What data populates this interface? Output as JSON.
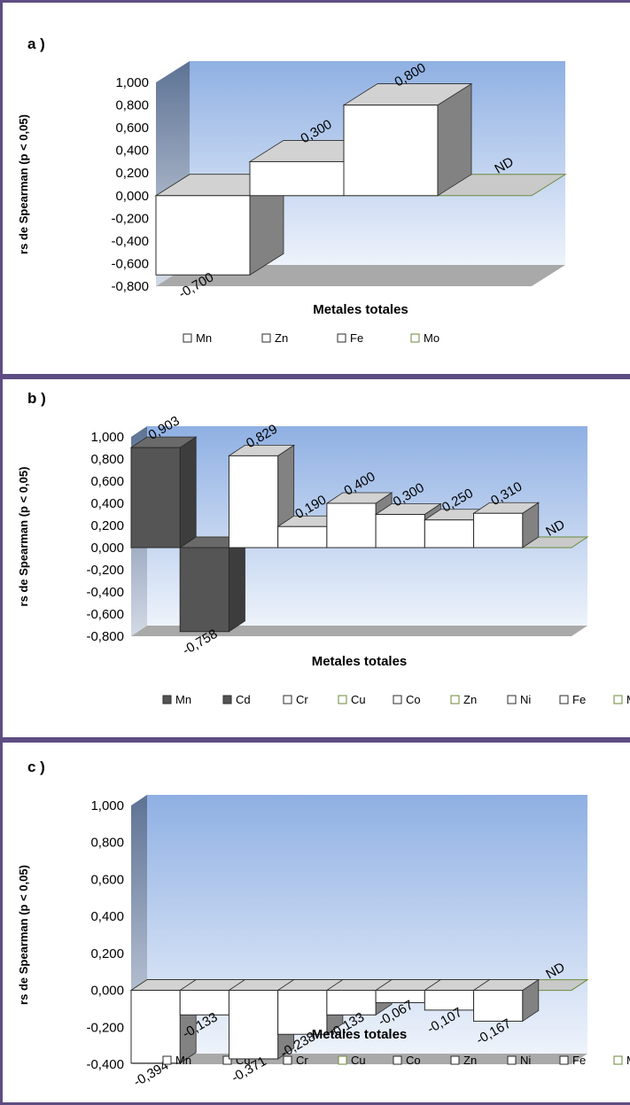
{
  "chart_data": [
    {
      "panel": "a )",
      "type": "bar",
      "ylabel": "rs  de Spearman (p < 0,05)",
      "xlabel": "Metales totales",
      "ylim": [
        -0.8,
        1.0
      ],
      "ytick_labels": [
        "1,000",
        "0,800",
        "0,600",
        "0,400",
        "0,200",
        "0,000",
        "-0,200",
        "-0,400",
        "-0,600",
        "-0,800"
      ],
      "series": [
        {
          "name": "Mn",
          "value": -0.7,
          "label": "-0,700",
          "color": "#ffffff"
        },
        {
          "name": "Zn",
          "value": 0.3,
          "label": "0,300",
          "color": "#ffffff"
        },
        {
          "name": "Fe",
          "value": 0.8,
          "label": "0,800",
          "color": "#ffffff"
        },
        {
          "name": "Mo",
          "value": 0.0,
          "label": "ND",
          "color": "#ffffff"
        }
      ]
    },
    {
      "panel": "b )",
      "type": "bar",
      "ylabel": "rs  de Spearman (p < 0,05)",
      "xlabel": "Metales totales",
      "ylim": [
        -0.8,
        1.0
      ],
      "ytick_labels": [
        "1,000",
        "0,800",
        "0,600",
        "0,400",
        "0,200",
        "0,000",
        "-0,200",
        "-0,400",
        "-0,600",
        "-0,800"
      ],
      "series": [
        {
          "name": "Mn",
          "value": 0.903,
          "label": "0,903",
          "color": "#555555"
        },
        {
          "name": "Cd",
          "value": -0.758,
          "label": "-0,758",
          "color": "#555555"
        },
        {
          "name": "Cr",
          "value": 0.829,
          "label": "0,829",
          "color": "#ffffff"
        },
        {
          "name": "Cu",
          "value": 0.19,
          "label": "0,190",
          "color": "#ffffff"
        },
        {
          "name": "Co",
          "value": 0.4,
          "label": "0,400",
          "color": "#ffffff"
        },
        {
          "name": "Zn",
          "value": 0.3,
          "label": "0,300",
          "color": "#ffffff"
        },
        {
          "name": "Ni",
          "value": 0.25,
          "label": "0,250",
          "color": "#ffffff"
        },
        {
          "name": "Fe",
          "value": 0.31,
          "label": "0,310",
          "color": "#ffffff"
        },
        {
          "name": "Mo",
          "value": 0.0,
          "label": "ND",
          "color": "#ffffff"
        }
      ]
    },
    {
      "panel": "c )",
      "type": "bar",
      "ylabel": "rs  de Spearman (p < 0,05)",
      "xlabel": "Metales totales",
      "ylim": [
        -0.4,
        1.0
      ],
      "ytick_labels": [
        "1,000",
        "0,800",
        "0,600",
        "0,400",
        "0,200",
        "0,000",
        "-0,200",
        "-0,400"
      ],
      "series": [
        {
          "name": "Mn",
          "value": -0.394,
          "label": "-0,394",
          "color": "#ffffff"
        },
        {
          "name": "Cd",
          "value": -0.133,
          "label": "-0,133",
          "color": "#ffffff"
        },
        {
          "name": "Cr",
          "value": -0.371,
          "label": "-0,371",
          "color": "#ffffff"
        },
        {
          "name": "Cu",
          "value": -0.238,
          "label": "-0,238",
          "color": "#ffffff"
        },
        {
          "name": "Co",
          "value": -0.133,
          "label": "-0,133",
          "color": "#ffffff"
        },
        {
          "name": "Zn",
          "value": -0.067,
          "label": "-0,067",
          "color": "#ffffff"
        },
        {
          "name": "Ni",
          "value": -0.107,
          "label": "-0,107",
          "color": "#ffffff"
        },
        {
          "name": "Fe",
          "value": -0.167,
          "label": "-0,167",
          "color": "#ffffff"
        },
        {
          "name": "Mo",
          "value": 0.0,
          "label": "ND",
          "color": "#ffffff"
        }
      ]
    }
  ]
}
